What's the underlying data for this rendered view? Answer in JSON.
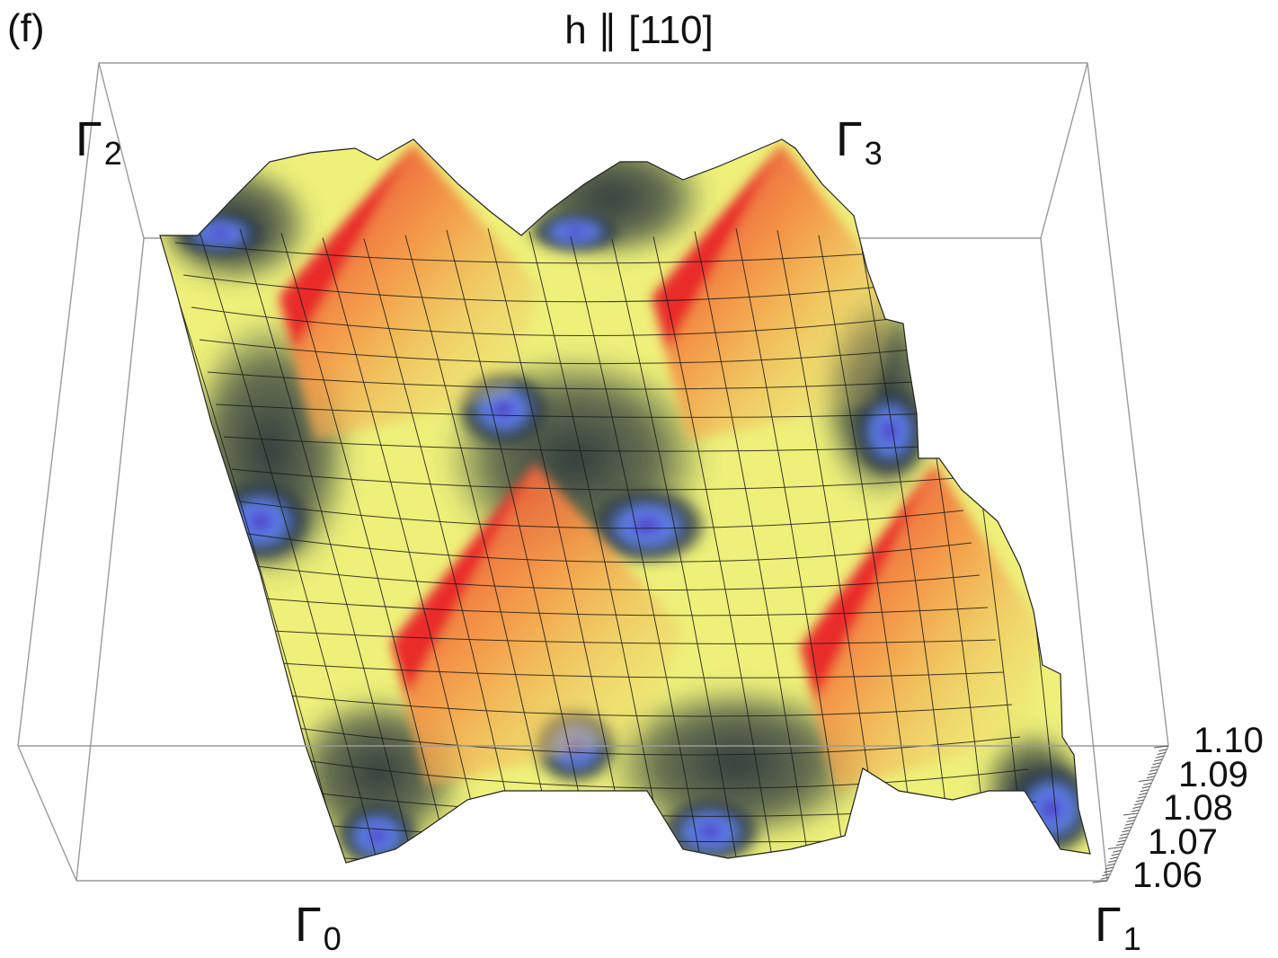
{
  "figure": {
    "panel_label": "(f)",
    "title": "h ∥ [110]"
  },
  "corner_labels": {
    "g0": {
      "sym": "Γ",
      "sub": "0"
    },
    "g1": {
      "sym": "Γ",
      "sub": "1"
    },
    "g2": {
      "sym": "Γ",
      "sub": "2"
    },
    "g3": {
      "sym": "Γ",
      "sub": "3"
    }
  },
  "colors": {
    "peak": "#e8242a",
    "mid_orange": "#f3a24a",
    "plateau": "#eef07a",
    "shadow": "#2c3a44",
    "valley_blue": "#5f85f2",
    "valley_violet": "#4a2fb8",
    "box": "#9a9a9a"
  },
  "chart_data": {
    "type": "surface",
    "title": "h ∥ [110]",
    "zlim": [
      1.06,
      1.1
    ],
    "z_ticks": [
      "1.06",
      "1.07",
      "1.08",
      "1.09",
      "1.10"
    ],
    "peaks": [
      {
        "between": "Γ2-Γ3 row, left",
        "z": 1.1
      },
      {
        "between": "Γ2-Γ3 row, right",
        "z": 1.1
      },
      {
        "between": "Γ0-Γ1 row, left",
        "z": 1.1
      },
      {
        "between": "Γ0-Γ1 row, right",
        "z": 1.1
      }
    ],
    "plateau_z": 1.075,
    "valley_z": 1.06
  }
}
